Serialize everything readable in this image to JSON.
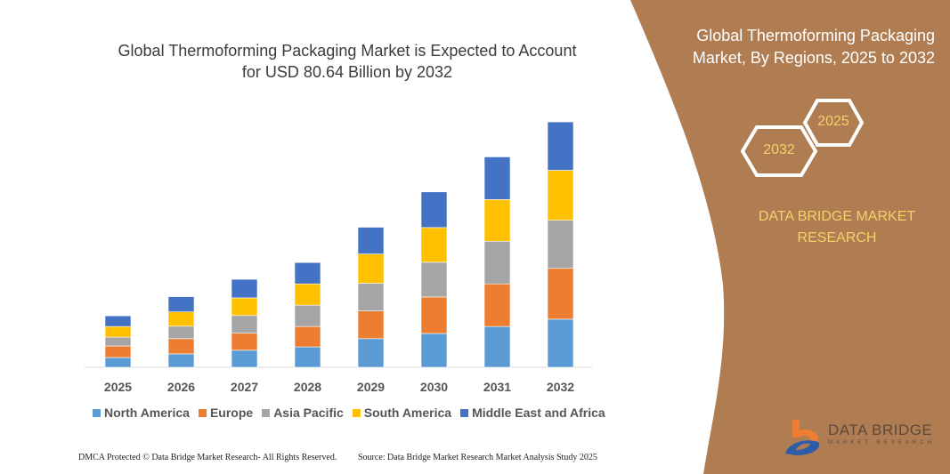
{
  "title": "Global Thermoforming Packaging Market is Expected to Account for USD 80.64 Billion by 2032",
  "side_panel": {
    "title": "Global Thermoforming Packaging Market, By Regions, 2025 to 2032",
    "hex_start": "2025",
    "hex_end": "2032",
    "brand": "DATA BRIDGE MARKET RESEARCH",
    "panel_color": "#B07D52"
  },
  "logo": {
    "name": "DATA BRIDGE",
    "sub": "MARKET RESEARCH"
  },
  "footer": {
    "left": "DMCA Protected © Data Bridge Market Research- All Rights Reserved.",
    "right": "Source: Data Bridge Market Research Market Analysis Study 2025"
  },
  "chart_data": {
    "type": "bar",
    "stacked": true,
    "categories": [
      "2025",
      "2026",
      "2027",
      "2028",
      "2029",
      "2030",
      "2031",
      "2032"
    ],
    "ylim": [
      0,
      85
    ],
    "grid": false,
    "legend_placement": "bottom",
    "series": [
      {
        "name": "North America",
        "color": "#5B9BD5",
        "values": [
          3.2,
          4.4,
          5.6,
          6.7,
          9.4,
          11.1,
          13.4,
          15.8
        ]
      },
      {
        "name": "Europe",
        "color": "#ED7D31",
        "values": [
          3.8,
          5.0,
          5.6,
          6.7,
          9.1,
          12.0,
          14.0,
          16.7
        ]
      },
      {
        "name": "Asia Pacific",
        "color": "#A5A5A5",
        "values": [
          2.9,
          4.1,
          5.8,
          7.0,
          9.1,
          11.4,
          14.0,
          15.8
        ]
      },
      {
        "name": "South America",
        "color": "#FFC000",
        "values": [
          3.5,
          4.7,
          5.8,
          7.0,
          9.6,
          11.4,
          13.7,
          16.4
        ]
      },
      {
        "name": "Middle East and Africa",
        "color": "#4472C4",
        "values": [
          3.5,
          5.0,
          6.1,
          7.0,
          8.8,
          11.7,
          14.0,
          15.9
        ]
      }
    ]
  }
}
